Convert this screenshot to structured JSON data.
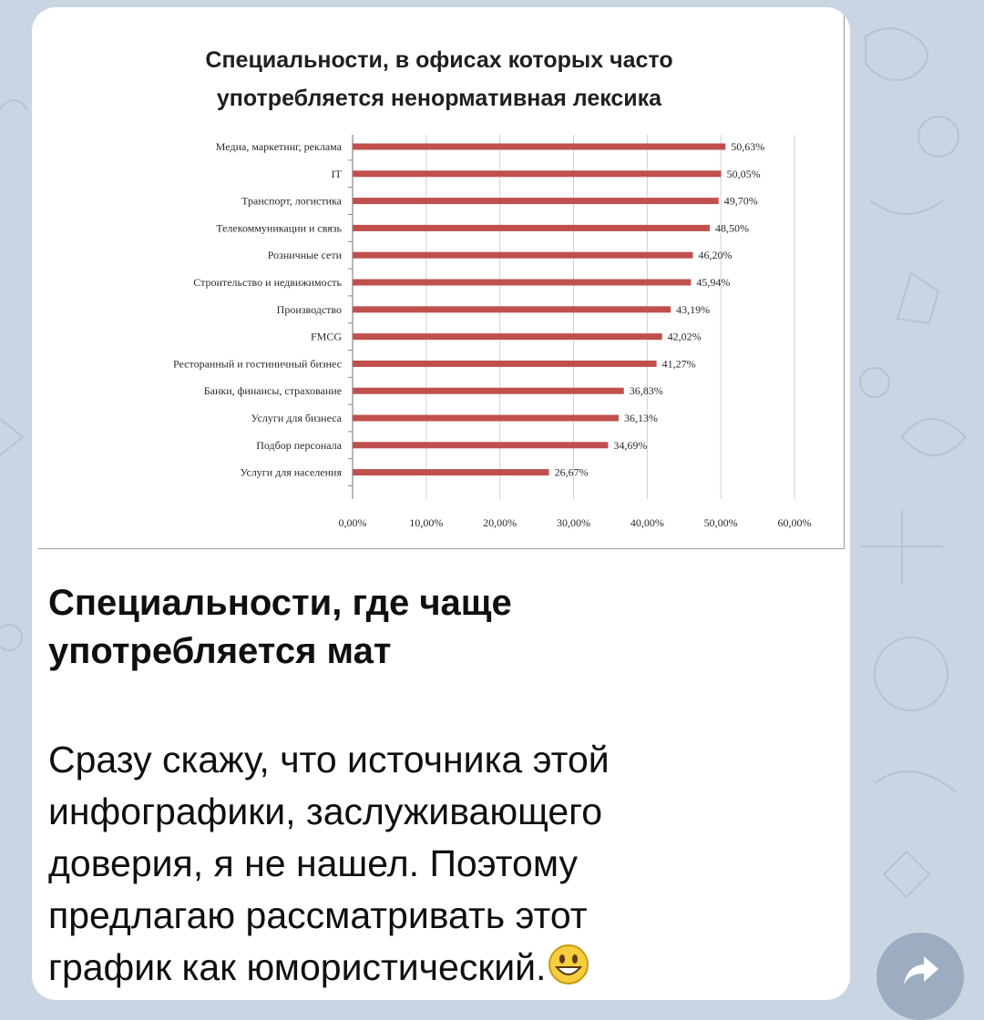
{
  "message": {
    "title_lines": [
      "Специальности, где чаще",
      "употребляется мат"
    ],
    "body_lines": [
      "Сразу скажу, что источника этой",
      "инфографики, заслуживающего",
      "доверия, я не нашел. Поэтому",
      "предлагаю рассматривать этот",
      "график как юмористический."
    ],
    "emoji": "grinning-face"
  },
  "colors": {
    "bar": "#c0504d",
    "wallpaper": "#c9d5e2",
    "bubble": "#ffffff"
  },
  "icons": {
    "forward": "forward-arrow-icon"
  },
  "chart_data": {
    "type": "bar",
    "orientation": "horizontal",
    "title_lines": [
      "Специальности, в офисах которых часто",
      "употребляется ненормативная лексика"
    ],
    "categories": [
      "Медиа, маркетинг, реклама",
      "IT",
      "Транспорт, логистика",
      "Телекоммуникации и связь",
      "Розничные сети",
      "Строительство и недвижимость",
      "Производство",
      "FMCG",
      "Ресторанный и гостиничный бизнес",
      "Банки, финансы, страхование",
      "Услуги для бизнеса",
      "Подбор персонала",
      "Услуги для населения"
    ],
    "values": [
      50.63,
      50.05,
      49.7,
      48.5,
      46.2,
      45.94,
      43.19,
      42.02,
      41.27,
      36.83,
      36.13,
      34.69,
      26.67
    ],
    "value_labels": [
      "50,63%",
      "50,05%",
      "49,70%",
      "48,50%",
      "46,20%",
      "45,94%",
      "43,19%",
      "42,02%",
      "41,27%",
      "36,83%",
      "36,13%",
      "34,69%",
      "26,67%"
    ],
    "x_ticks": [
      0,
      10,
      20,
      30,
      40,
      50,
      60
    ],
    "x_tick_labels": [
      "0,00%",
      "10,00%",
      "20,00%",
      "30,00%",
      "40,00%",
      "50,00%",
      "60,00%"
    ],
    "xlim": [
      0,
      60
    ],
    "grid": true,
    "legend": "none"
  }
}
